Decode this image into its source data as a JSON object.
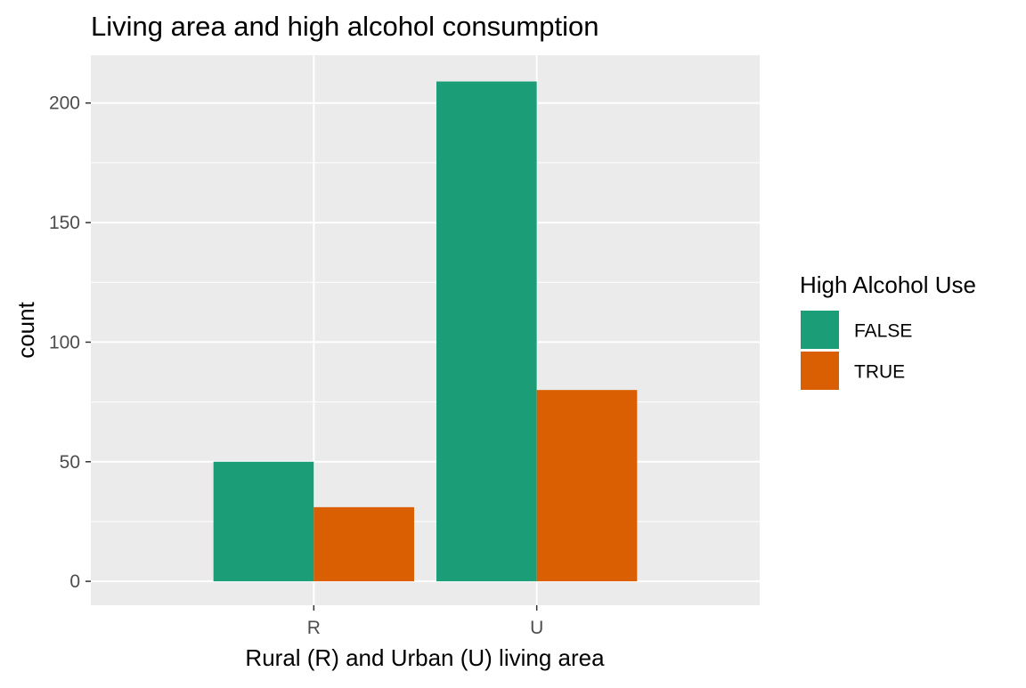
{
  "chart_data": {
    "type": "bar",
    "title": "Living area and high alcohol consumption",
    "xlabel": "Rural (R) and Urban (U) living area",
    "ylabel": "count",
    "categories": [
      "R",
      "U"
    ],
    "series": [
      {
        "name": "FALSE",
        "values": [
          50,
          209
        ],
        "color": "#1b9e77"
      },
      {
        "name": "TRUE",
        "values": [
          31,
          80
        ],
        "color": "#d95f02"
      }
    ],
    "ylim": [
      -10,
      220
    ],
    "yticks": [
      0,
      50,
      100,
      150,
      200
    ],
    "grid": true,
    "legend": {
      "title": "High Alcohol Use",
      "placement": "right",
      "entries": [
        "FALSE",
        "TRUE"
      ]
    },
    "colors": {
      "panel_background": "#ebebeb",
      "grid_line": "#ffffff",
      "axis_text": "#4d4d4d",
      "title_text": "#000000"
    }
  }
}
